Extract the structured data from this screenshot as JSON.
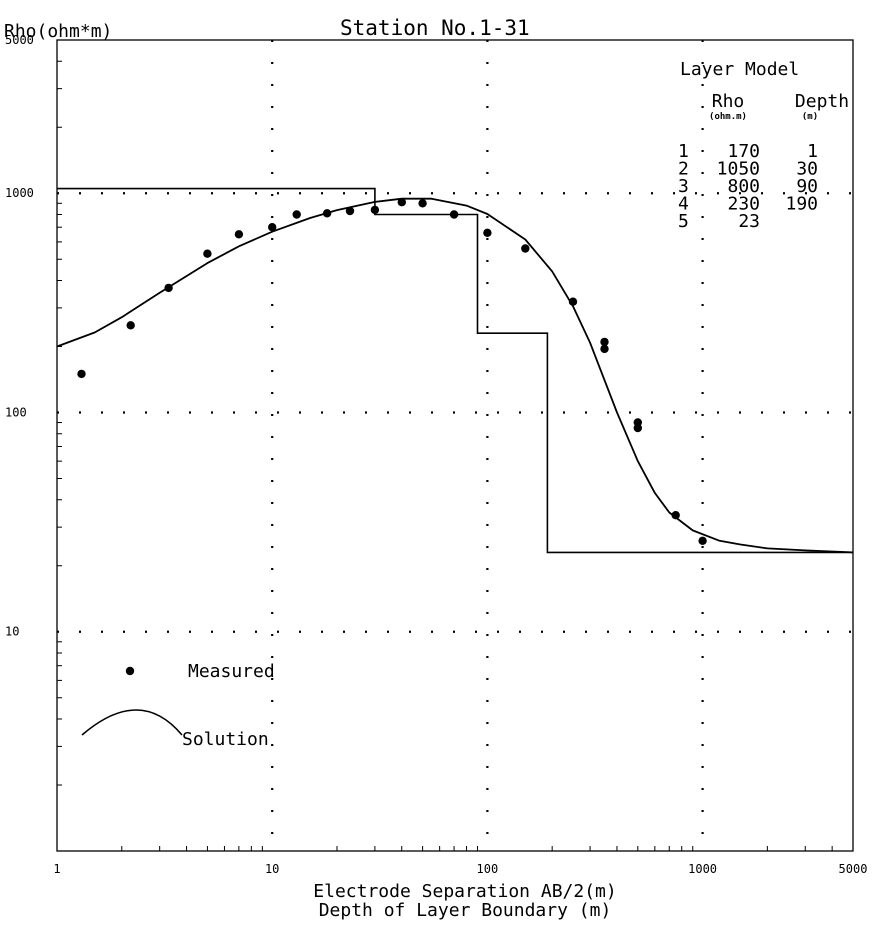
{
  "chart_data": {
    "type": "line",
    "title": "Station No.1-31",
    "ylabel": "Rho(ohm*m)",
    "xlabel": "Electrode Separation AB/2(m)",
    "xlabel2": "Depth of Layer Boundary   (m)",
    "xscale": "log",
    "yscale": "log",
    "xlim": [
      1,
      5000
    ],
    "ylim": [
      1,
      5000
    ],
    "x_ticks": [
      1,
      10,
      100,
      1000,
      5000
    ],
    "x_tick_labels": [
      "1",
      "10",
      "100",
      "1000",
      "5000"
    ],
    "y_ticks": [
      5000,
      1000,
      100,
      10
    ],
    "y_tick_labels": [
      "5000",
      "1000",
      "100",
      "10"
    ],
    "grid": "dotted at decades",
    "measured": {
      "x": [
        1.3,
        2.2,
        3.3,
        5,
        7,
        10,
        13,
        18,
        23,
        30,
        40,
        50,
        70,
        100,
        150,
        250,
        350,
        350,
        500,
        500,
        750,
        1000
      ],
      "y": [
        150,
        250,
        370,
        530,
        650,
        700,
        800,
        810,
        830,
        840,
        910,
        900,
        800,
        660,
        560,
        320,
        210,
        195,
        90,
        85,
        34,
        26
      ]
    },
    "solution": {
      "x": [
        1,
        1.5,
        2,
        3,
        5,
        7,
        10,
        15,
        20,
        30,
        40,
        55,
        80,
        100,
        150,
        200,
        250,
        300,
        400,
        500,
        600,
        700,
        900,
        1200,
        1500,
        2000,
        3000,
        5000
      ],
      "y": [
        200,
        232,
        272,
        352,
        480,
        573,
        668,
        771,
        838,
        913,
        944,
        944,
        878,
        804,
        615,
        440,
        305,
        208,
        100,
        60,
        43,
        35,
        29,
        26,
        25,
        24,
        23.5,
        23
      ]
    },
    "layer_model_curve": {
      "x": [
        1,
        30,
        30,
        90,
        90,
        190,
        190,
        5000
      ],
      "y": [
        1050,
        1050,
        800,
        800,
        230,
        230,
        23,
        23
      ]
    },
    "layer_model": {
      "title": "Layer Model",
      "col_rho": "Rho",
      "col_rho_unit": "(ohm.m)",
      "col_depth": "Depth",
      "col_depth_unit": "(m)",
      "rows": [
        {
          "n": "1",
          "rho": "170",
          "depth": "1"
        },
        {
          "n": "2",
          "rho": "1050",
          "depth": "30"
        },
        {
          "n": "3",
          "rho": "800",
          "depth": "90"
        },
        {
          "n": "4",
          "rho": "230",
          "depth": "190"
        },
        {
          "n": "5",
          "rho": "23",
          "depth": ""
        }
      ]
    },
    "legend": {
      "measured_label": "Measured",
      "solution_label": "Solution",
      "placement": "lower-left"
    }
  }
}
